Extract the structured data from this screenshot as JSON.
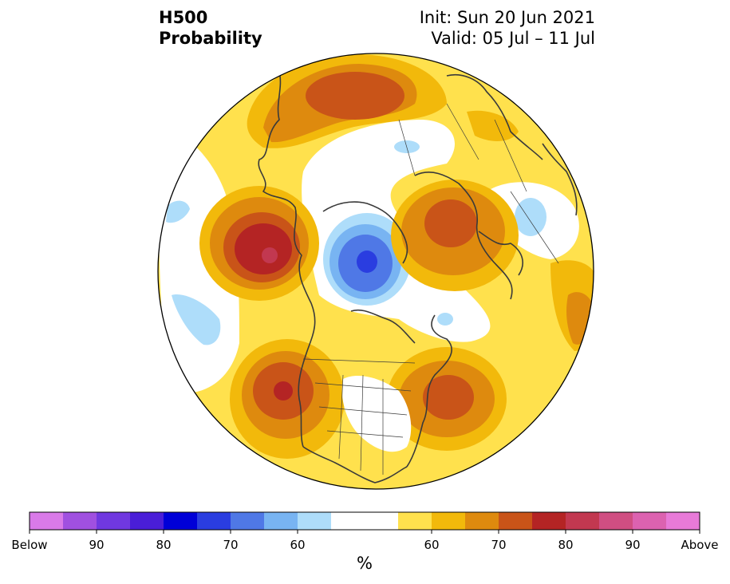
{
  "header": {
    "title_line1": "H500",
    "title_line2": "Probability",
    "init_text": "Init: Sun 20 Jun 2021",
    "valid_text": "Valid: 05 Jul – 11 Jul"
  },
  "map": {
    "projection": "north-polar-stereographic",
    "background_color": "#ffe14d",
    "regions": [
      {
        "name": "aleutian-above-normal-anomaly",
        "category": "above",
        "peak_level": "80-85"
      },
      {
        "name": "western-us-above-normal-anomaly",
        "category": "above",
        "peak_level": "80-85"
      },
      {
        "name": "eastern-canada-above-normal-anomaly",
        "category": "above",
        "peak_level": "70-75"
      },
      {
        "name": "north-atlantic-above-normal-anomaly",
        "category": "above",
        "peak_level": "70-75"
      },
      {
        "name": "eastern-siberia-above-normal-anomaly",
        "category": "above",
        "peak_level": "70-75"
      },
      {
        "name": "scandinavia-above-normal-anomaly",
        "category": "above",
        "peak_level": "70-75"
      },
      {
        "name": "arctic-below-normal-anomaly",
        "category": "below",
        "peak_level": "80-85"
      },
      {
        "name": "western-europe-below-normal-anomaly",
        "category": "below",
        "peak_level": "60"
      },
      {
        "name": "pacific-below-normal-anomaly",
        "category": "below",
        "peak_level": "60"
      }
    ]
  },
  "colorbar": {
    "unit": "%",
    "colors": [
      "#d97ae8",
      "#a050e0",
      "#7038e0",
      "#4a1ed8",
      "#0000d8",
      "#2a3de0",
      "#4f78e6",
      "#78b4f2",
      "#aeddfa",
      "#ffffff",
      "#ffffff",
      "#ffe14d",
      "#f2b90b",
      "#de8a0e",
      "#c95418",
      "#b42424",
      "#c23850",
      "#d04e82",
      "#dc62b0",
      "#e87ad8"
    ],
    "tick_labels": [
      {
        "text": "Below",
        "index": 0
      },
      {
        "text": "90",
        "index": 2
      },
      {
        "text": "80",
        "index": 4
      },
      {
        "text": "70",
        "index": 6
      },
      {
        "text": "60",
        "index": 8
      },
      {
        "text": "60",
        "index": 12
      },
      {
        "text": "70",
        "index": 14
      },
      {
        "text": "80",
        "index": 16
      },
      {
        "text": "90",
        "index": 18
      },
      {
        "text": "Above",
        "index": 20
      }
    ]
  }
}
